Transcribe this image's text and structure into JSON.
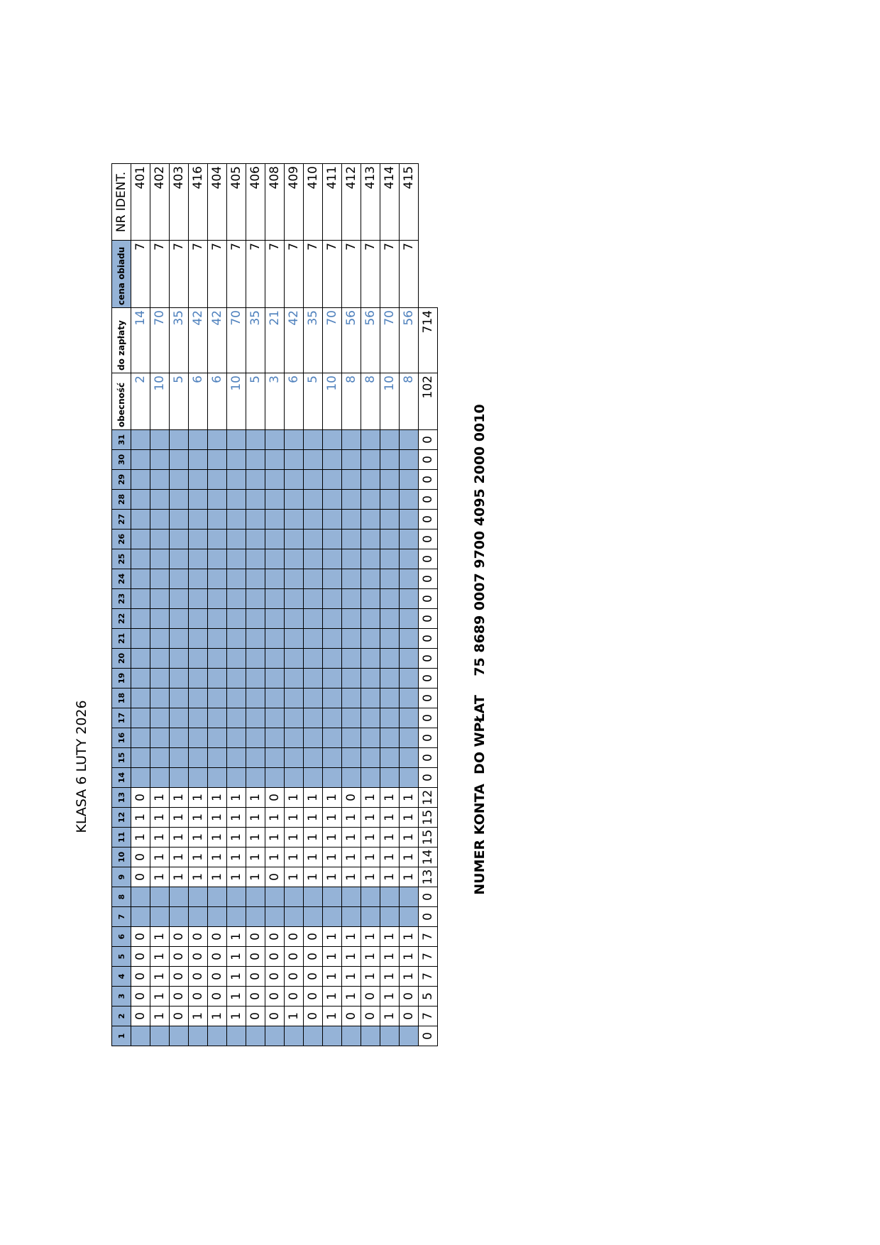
{
  "title": "KLASA 6 LUTY 2026",
  "table": {
    "header": {
      "days": [
        1,
        2,
        3,
        4,
        5,
        6,
        7,
        8,
        9,
        10,
        11,
        12,
        13,
        14,
        15,
        16,
        17,
        18,
        19,
        20,
        21,
        22,
        23,
        24,
        25,
        26,
        27,
        28,
        29,
        30,
        31
      ],
      "columns": [
        "obecność",
        "do zapłaty",
        "cena obiadu",
        "NR IDENT."
      ]
    },
    "rows": [
      {
        "days": [
          null,
          0,
          0,
          0,
          0,
          0,
          null,
          null,
          0,
          0,
          1,
          1,
          0,
          null,
          null,
          null,
          null,
          null,
          null,
          null,
          null,
          null,
          null,
          null,
          null,
          null,
          null,
          null,
          null,
          null,
          null
        ],
        "attendance": 2,
        "due": 14,
        "price": 7,
        "id": 401
      },
      {
        "days": [
          null,
          1,
          1,
          1,
          1,
          1,
          null,
          null,
          1,
          1,
          1,
          1,
          1,
          null,
          null,
          null,
          null,
          null,
          null,
          null,
          null,
          null,
          null,
          null,
          null,
          null,
          null,
          null,
          null,
          null,
          null
        ],
        "attendance": 10,
        "due": 70,
        "price": 7,
        "id": 402
      },
      {
        "days": [
          null,
          0,
          0,
          0,
          0,
          0,
          null,
          null,
          1,
          1,
          1,
          1,
          1,
          null,
          null,
          null,
          null,
          null,
          null,
          null,
          null,
          null,
          null,
          null,
          null,
          null,
          null,
          null,
          null,
          null,
          null
        ],
        "attendance": 5,
        "due": 35,
        "price": 7,
        "id": 403
      },
      {
        "days": [
          null,
          1,
          0,
          0,
          0,
          0,
          null,
          null,
          1,
          1,
          1,
          1,
          1,
          null,
          null,
          null,
          null,
          null,
          null,
          null,
          null,
          null,
          null,
          null,
          null,
          null,
          null,
          null,
          null,
          null,
          null
        ],
        "attendance": 6,
        "due": 42,
        "price": 7,
        "id": 416
      },
      {
        "days": [
          null,
          1,
          0,
          0,
          0,
          0,
          null,
          null,
          1,
          1,
          1,
          1,
          1,
          null,
          null,
          null,
          null,
          null,
          null,
          null,
          null,
          null,
          null,
          null,
          null,
          null,
          null,
          null,
          null,
          null,
          null
        ],
        "attendance": 6,
        "due": 42,
        "price": 7,
        "id": 404
      },
      {
        "days": [
          null,
          1,
          1,
          1,
          1,
          1,
          null,
          null,
          1,
          1,
          1,
          1,
          1,
          null,
          null,
          null,
          null,
          null,
          null,
          null,
          null,
          null,
          null,
          null,
          null,
          null,
          null,
          null,
          null,
          null,
          null
        ],
        "attendance": 10,
        "due": 70,
        "price": 7,
        "id": 405
      },
      {
        "days": [
          null,
          0,
          0,
          0,
          0,
          0,
          null,
          null,
          1,
          1,
          1,
          1,
          1,
          null,
          null,
          null,
          null,
          null,
          null,
          null,
          null,
          null,
          null,
          null,
          null,
          null,
          null,
          null,
          null,
          null,
          null
        ],
        "attendance": 5,
        "due": 35,
        "price": 7,
        "id": 406
      },
      {
        "days": [
          null,
          0,
          0,
          0,
          0,
          0,
          null,
          null,
          0,
          1,
          1,
          1,
          0,
          null,
          null,
          null,
          null,
          null,
          null,
          null,
          null,
          null,
          null,
          null,
          null,
          null,
          null,
          null,
          null,
          null,
          null
        ],
        "attendance": 3,
        "due": 21,
        "price": 7,
        "id": 408
      },
      {
        "days": [
          null,
          1,
          0,
          0,
          0,
          0,
          null,
          null,
          1,
          1,
          1,
          1,
          1,
          null,
          null,
          null,
          null,
          null,
          null,
          null,
          null,
          null,
          null,
          null,
          null,
          null,
          null,
          null,
          null,
          null,
          null
        ],
        "attendance": 6,
        "due": 42,
        "price": 7,
        "id": 409
      },
      {
        "days": [
          null,
          0,
          0,
          0,
          0,
          0,
          null,
          null,
          1,
          1,
          1,
          1,
          1,
          null,
          null,
          null,
          null,
          null,
          null,
          null,
          null,
          null,
          null,
          null,
          null,
          null,
          null,
          null,
          null,
          null,
          null
        ],
        "attendance": 5,
        "due": 35,
        "price": 7,
        "id": 410
      },
      {
        "days": [
          null,
          1,
          1,
          1,
          1,
          1,
          null,
          null,
          1,
          1,
          1,
          1,
          1,
          null,
          null,
          null,
          null,
          null,
          null,
          null,
          null,
          null,
          null,
          null,
          null,
          null,
          null,
          null,
          null,
          null,
          null
        ],
        "attendance": 10,
        "due": 70,
        "price": 7,
        "id": 411
      },
      {
        "days": [
          null,
          0,
          1,
          1,
          1,
          1,
          null,
          null,
          1,
          1,
          1,
          1,
          0,
          null,
          null,
          null,
          null,
          null,
          null,
          null,
          null,
          null,
          null,
          null,
          null,
          null,
          null,
          null,
          null,
          null,
          null
        ],
        "attendance": 8,
        "due": 56,
        "price": 7,
        "id": 412
      },
      {
        "days": [
          null,
          0,
          0,
          1,
          1,
          1,
          null,
          null,
          1,
          1,
          1,
          1,
          1,
          null,
          null,
          null,
          null,
          null,
          null,
          null,
          null,
          null,
          null,
          null,
          null,
          null,
          null,
          null,
          null,
          null,
          null
        ],
        "attendance": 8,
        "due": 56,
        "price": 7,
        "id": 413
      },
      {
        "days": [
          null,
          1,
          1,
          1,
          1,
          1,
          null,
          null,
          1,
          1,
          1,
          1,
          1,
          null,
          null,
          null,
          null,
          null,
          null,
          null,
          null,
          null,
          null,
          null,
          null,
          null,
          null,
          null,
          null,
          null,
          null
        ],
        "attendance": 10,
        "due": 70,
        "price": 7,
        "id": 414
      },
      {
        "days": [
          null,
          0,
          0,
          1,
          1,
          1,
          null,
          null,
          1,
          1,
          1,
          1,
          1,
          null,
          null,
          null,
          null,
          null,
          null,
          null,
          null,
          null,
          null,
          null,
          null,
          null,
          null,
          null,
          null,
          null,
          null
        ],
        "attendance": 8,
        "due": 56,
        "price": 7,
        "id": 415
      }
    ],
    "totals": {
      "days": [
        0,
        7,
        5,
        7,
        7,
        7,
        0,
        0,
        13,
        14,
        15,
        15,
        12,
        0,
        0,
        0,
        0,
        0,
        0,
        0,
        0,
        0,
        0,
        0,
        0,
        0,
        0,
        0,
        0,
        0,
        0
      ],
      "attendance": 102,
      "due": 714
    }
  },
  "footer": {
    "label": "NUMER KONTA  DO WPŁAT",
    "account": "75 8689 0007 9700 4095 2000 0010"
  }
}
